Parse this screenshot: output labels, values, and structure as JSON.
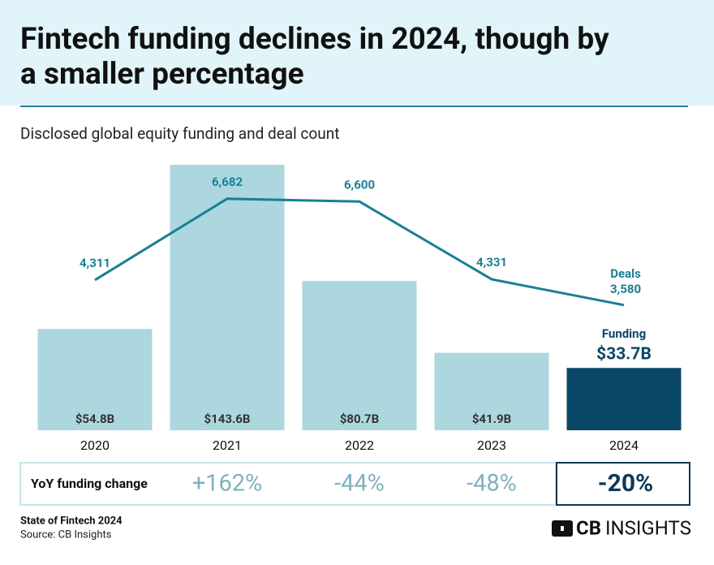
{
  "chart_data": {
    "type": "bar_line",
    "title_lines": [
      "Fintech funding declines in 2024, though by",
      "a smaller percentage"
    ],
    "subtitle": "Disclosed global equity funding and deal count",
    "categories": [
      "2020",
      "2021",
      "2022",
      "2023",
      "2024"
    ],
    "series": [
      {
        "name": "Funding",
        "type": "bar",
        "colors": [
          "#acd7df",
          "#acd7df",
          "#acd7df",
          "#acd7df",
          "#0b4766"
        ],
        "values": [
          54.8,
          143.6,
          80.7,
          41.9,
          33.7
        ],
        "value_labels": [
          "$54.8B",
          "$143.6B",
          "$80.7B",
          "$41.9B",
          "$33.7B"
        ]
      },
      {
        "name": "Deals",
        "type": "line",
        "color": "#1b7f95",
        "values": [
          4311,
          6682,
          6600,
          4331,
          3580
        ],
        "value_labels": [
          "4,311",
          "6,682",
          "6,600",
          "4,331",
          "3,580"
        ]
      }
    ],
    "yoy_change": {
      "label": "YoY funding change",
      "values": [
        null,
        162,
        -44,
        -48,
        -20
      ],
      "value_labels": [
        null,
        "+162%",
        "-44%",
        "-48%",
        "-20%"
      ]
    },
    "footer": {
      "title": "State of Fintech 2024",
      "source": "Source: CB Insights"
    },
    "logo": {
      "bold": "CB",
      "rest": "INSIGHTS"
    }
  }
}
